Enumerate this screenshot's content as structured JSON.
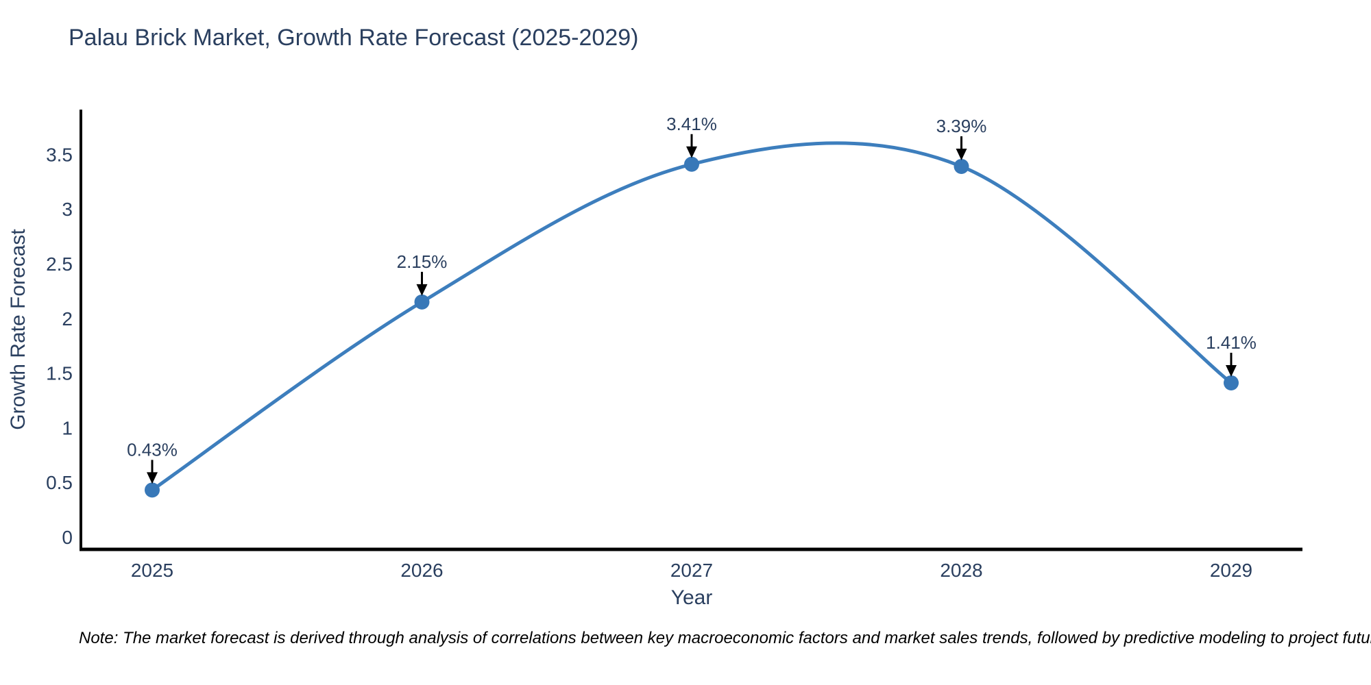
{
  "chart": {
    "title": "Palau Brick Market, Growth Rate Forecast (2025-2029)",
    "xlabel": "Year",
    "ylabel": "Growth Rate Forecast"
  },
  "note": "Note: The market forecast is derived through analysis of correlations between key macroeconomic factors and market sales trends, followed by predictive modeling to project future sales",
  "chart_data": {
    "type": "line",
    "title": "Palau Brick Market, Growth Rate Forecast (2025-2029)",
    "xlabel": "Year",
    "ylabel": "Growth Rate Forecast",
    "x": [
      2025,
      2026,
      2027,
      2028,
      2029
    ],
    "series": [
      {
        "name": "Growth Rate Forecast",
        "values": [
          0.43,
          2.15,
          3.41,
          3.39,
          1.41
        ]
      }
    ],
    "point_labels": [
      "0.43%",
      "2.15%",
      "3.41%",
      "3.39%",
      "1.41%"
    ],
    "yticks": [
      0,
      0.5,
      1,
      1.5,
      2,
      2.5,
      3,
      3.5
    ],
    "ylim": [
      0,
      3.9
    ],
    "line_shape": "spline",
    "grid": false,
    "legend_position": "none",
    "colors": {
      "line": "#3d7ebd",
      "marker": "#3878b8",
      "axis": "#000000",
      "text": "#2a3f5f",
      "arrow": "#000000",
      "note": "#000000",
      "background": "#ffffff"
    }
  }
}
